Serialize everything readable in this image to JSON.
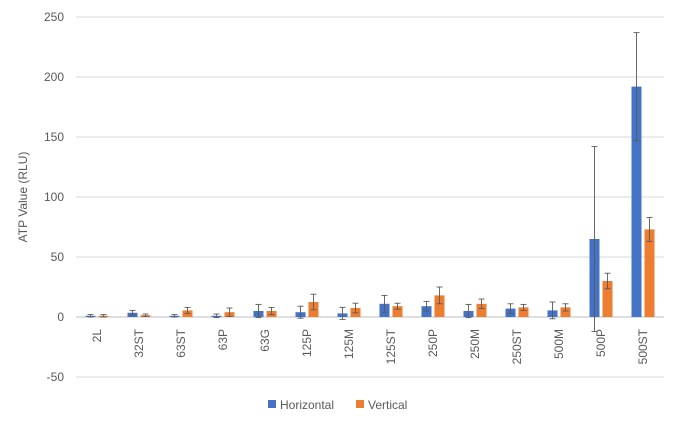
{
  "chart_data": {
    "type": "bar",
    "title": "",
    "xlabel": "",
    "ylabel": "ATP Value (RLU)",
    "ylim": [
      -50,
      250
    ],
    "yticks": [
      -50,
      0,
      50,
      100,
      150,
      200,
      250
    ],
    "grid": "horizontal",
    "legend_position": "bottom",
    "categories": [
      "2L",
      "32ST",
      "63ST",
      "63P",
      "63G",
      "125P",
      "125M",
      "125ST",
      "250P",
      "250M",
      "250ST",
      "500M",
      "500P",
      "500ST"
    ],
    "series": [
      {
        "name": "Horizontal",
        "color": "#4472C4",
        "values": [
          1,
          3.5,
          1,
          1,
          5,
          4,
          3,
          11,
          9,
          5,
          7,
          5.5,
          65,
          192
        ],
        "errors": [
          1,
          2,
          1,
          1.5,
          5.5,
          5,
          5,
          7,
          4,
          5.5,
          4,
          7,
          77,
          45
        ]
      },
      {
        "name": "Vertical",
        "color": "#ED7D31",
        "values": [
          1,
          1.5,
          5.5,
          4,
          5,
          12.5,
          7.5,
          9,
          18,
          11,
          8,
          8,
          30,
          73
        ],
        "errors": [
          1,
          1,
          2.5,
          3.5,
          3,
          6.5,
          4,
          2.5,
          7,
          4,
          2.5,
          3,
          6.5,
          10
        ]
      }
    ]
  }
}
